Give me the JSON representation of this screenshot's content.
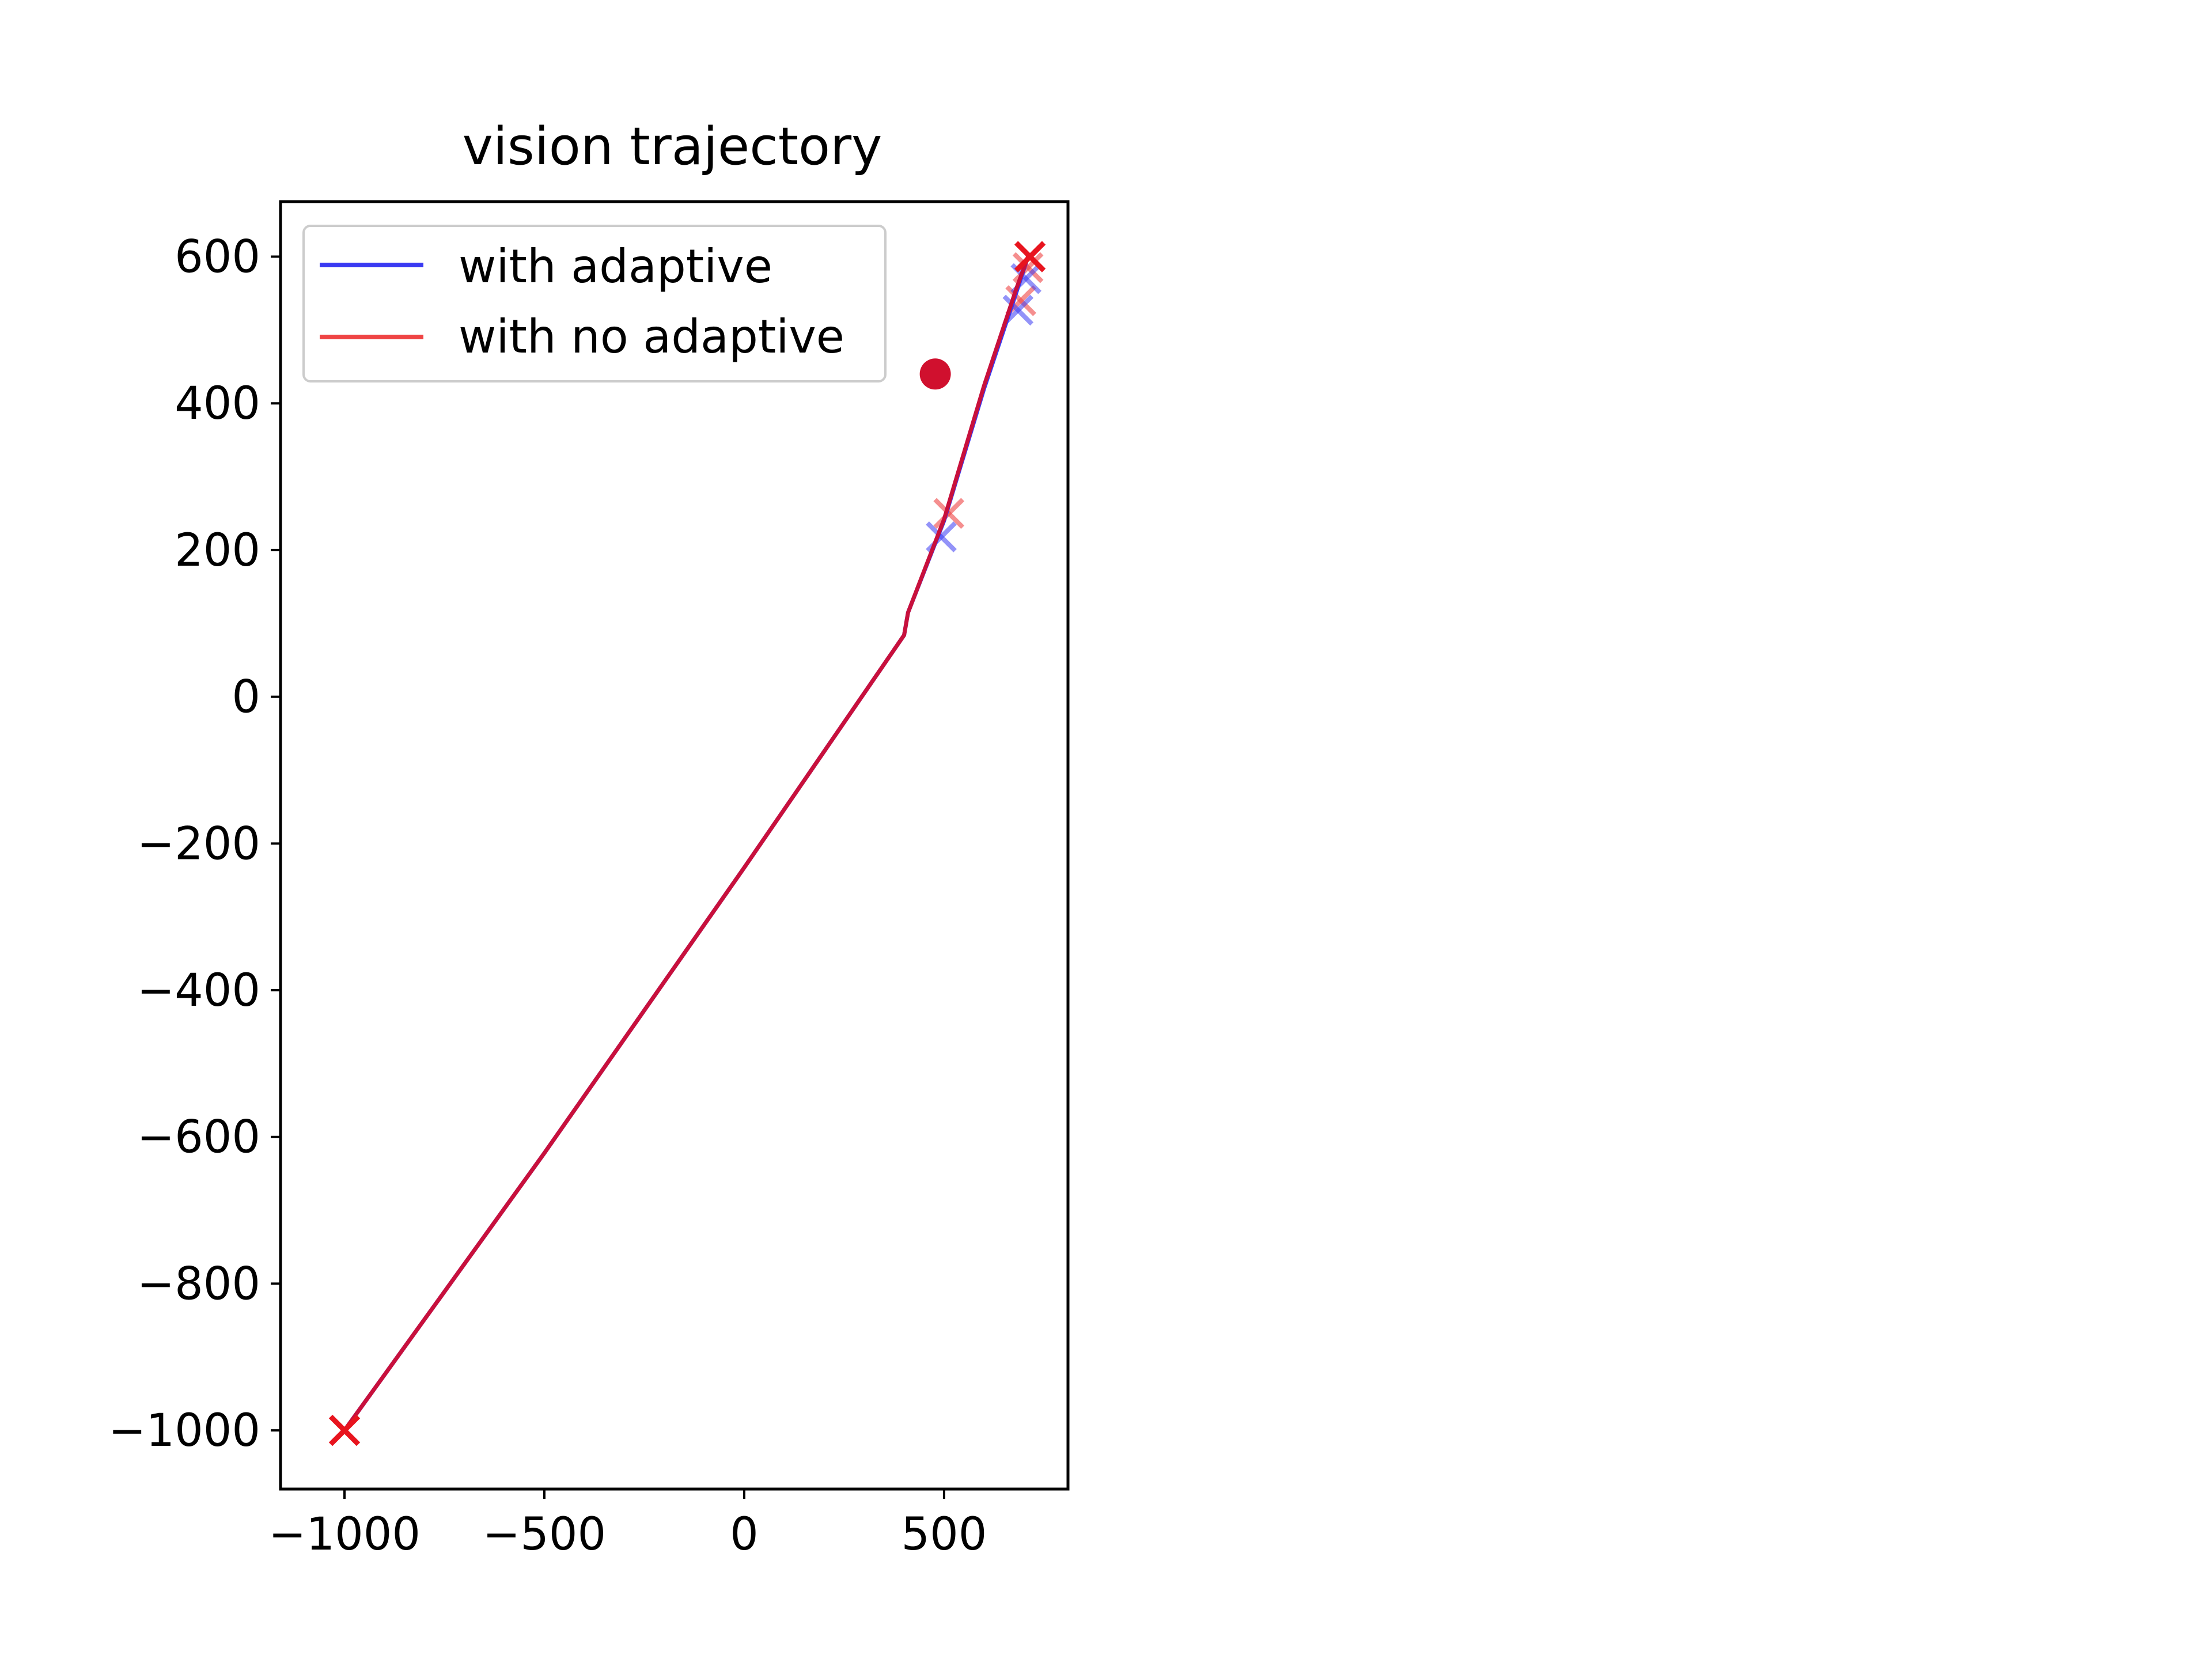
{
  "chart_data": {
    "type": "line",
    "title": "vision trajectory",
    "xlabel": "",
    "ylabel": "",
    "xlim": [
      -1160,
      810
    ],
    "ylim": [
      -1080,
      675
    ],
    "xticks": [
      -1000,
      -500,
      0,
      500
    ],
    "xtick_labels": [
      "−1000",
      "−500",
      "0",
      "500"
    ],
    "yticks": [
      -1000,
      -800,
      -600,
      -400,
      -200,
      0,
      200,
      400,
      600
    ],
    "ytick_labels": [
      "−1000",
      "−800",
      "−600",
      "−400",
      "−200",
      "0",
      "200",
      "400",
      "600"
    ],
    "grid": false,
    "legend_position": "upper left",
    "colors": {
      "with_adaptive": "#3a3af2",
      "with_no_adaptive": "#ef4444",
      "overlap_line": "#c8103c",
      "start_end_marker": "#e8141e",
      "target_point": "#d0102e"
    },
    "series": [
      {
        "name": "with adaptive",
        "x": [
          -1000,
          -500,
          0,
          400,
          410,
          500,
          600,
          680,
          710
        ],
        "y": [
          -1000,
          -622,
          -233,
          84,
          115,
          240,
          420,
          550,
          600
        ]
      },
      {
        "name": "with no adaptive",
        "x": [
          -1000,
          -500,
          0,
          400,
          410,
          500,
          600,
          680,
          710
        ],
        "y": [
          -1000,
          -622,
          -233,
          84,
          115,
          242,
          424,
          555,
          600
        ]
      }
    ],
    "markers": {
      "start": {
        "x": -1000,
        "y": -1000
      },
      "end": {
        "x": 715,
        "y": 600
      },
      "target": {
        "x": 478,
        "y": 440
      },
      "adaptive_crosses": [
        {
          "x": 493,
          "y": 218
        },
        {
          "x": 685,
          "y": 527
        },
        {
          "x": 705,
          "y": 570
        }
      ],
      "no_adaptive_crosses": [
        {
          "x": 512,
          "y": 250
        },
        {
          "x": 692,
          "y": 540
        },
        {
          "x": 710,
          "y": 585
        }
      ]
    }
  }
}
